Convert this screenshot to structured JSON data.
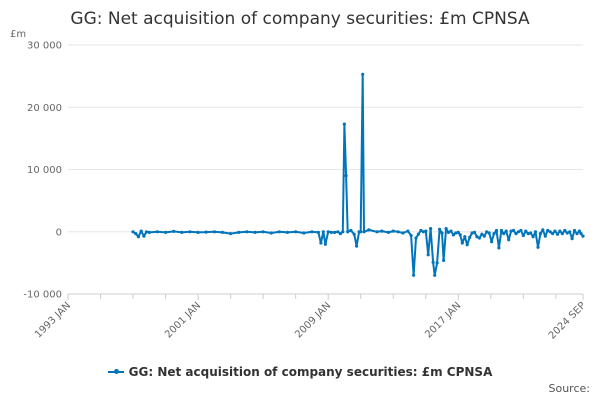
{
  "title": "GG: Net acquisition of company securities: £m CPNSA",
  "source_label": "Source:",
  "colors": {
    "series": "#0075bc",
    "grid": "#e6e6e6",
    "axis": "#cccccc",
    "text": "#666666"
  },
  "chart_data": {
    "type": "line",
    "title": "GG: Net acquisition of company securities: £m CPNSA",
    "ylabel": "£m",
    "ylim": [
      -10000,
      30000
    ],
    "yticks": [
      {
        "value": -10000,
        "label": "-10 000"
      },
      {
        "value": 0,
        "label": "0"
      },
      {
        "value": 10000,
        "label": "10 000"
      },
      {
        "value": 20000,
        "label": "20 000"
      },
      {
        "value": 30000,
        "label": "30 000"
      }
    ],
    "xlim": [
      1993.0,
      2024.67
    ],
    "xticks": [
      {
        "value": 1993.0,
        "label": "1993 JAN"
      },
      {
        "value": 2001.0,
        "label": "2001 JAN"
      },
      {
        "value": 2009.0,
        "label": "2009 JAN"
      },
      {
        "value": 2017.0,
        "label": "2017 JAN"
      },
      {
        "value": 2024.67,
        "label": "2024 SEP"
      }
    ],
    "minor_xticks": [
      1995,
      1997,
      1999,
      2003,
      2005,
      2007,
      2011,
      2013,
      2015,
      2019,
      2021,
      2023
    ],
    "grid": true,
    "legend_position": "bottom",
    "series": [
      {
        "name": "GG: Net acquisition of company securities: £m CPNSA",
        "points": [
          [
            1997.0,
            0
          ],
          [
            1997.17,
            -300
          ],
          [
            1997.33,
            -800
          ],
          [
            1997.5,
            100
          ],
          [
            1997.67,
            -700
          ],
          [
            1997.83,
            0
          ],
          [
            1998.0,
            -100
          ],
          [
            1998.5,
            0
          ],
          [
            1999.0,
            -100
          ],
          [
            1999.5,
            50
          ],
          [
            2000.0,
            -100
          ],
          [
            2000.5,
            0
          ],
          [
            2001.0,
            -100
          ],
          [
            2001.5,
            -50
          ],
          [
            2002.0,
            0
          ],
          [
            2002.5,
            -100
          ],
          [
            2003.0,
            -300
          ],
          [
            2003.5,
            -100
          ],
          [
            2004.0,
            0
          ],
          [
            2004.5,
            -100
          ],
          [
            2005.0,
            0
          ],
          [
            2005.5,
            -200
          ],
          [
            2006.0,
            0
          ],
          [
            2006.5,
            -100
          ],
          [
            2007.0,
            0
          ],
          [
            2007.5,
            -200
          ],
          [
            2008.0,
            0
          ],
          [
            2008.4,
            -100
          ],
          [
            2008.55,
            -1800
          ],
          [
            2008.7,
            0
          ],
          [
            2008.83,
            -2000
          ],
          [
            2009.0,
            0
          ],
          [
            2009.2,
            -100
          ],
          [
            2009.4,
            -100
          ],
          [
            2009.6,
            0
          ],
          [
            2009.75,
            -300
          ],
          [
            2009.9,
            0
          ],
          [
            2010.0,
            17300
          ],
          [
            2010.1,
            9000
          ],
          [
            2010.2,
            0
          ],
          [
            2010.4,
            200
          ],
          [
            2010.6,
            -400
          ],
          [
            2010.75,
            -2300
          ],
          [
            2010.9,
            0
          ],
          [
            2011.0,
            0
          ],
          [
            2011.12,
            25300
          ],
          [
            2011.2,
            0
          ],
          [
            2011.5,
            300
          ],
          [
            2012.0,
            0
          ],
          [
            2012.3,
            100
          ],
          [
            2012.7,
            -100
          ],
          [
            2013.0,
            100
          ],
          [
            2013.3,
            0
          ],
          [
            2013.6,
            -200
          ],
          [
            2013.9,
            100
          ],
          [
            2014.1,
            -600
          ],
          [
            2014.25,
            -7000
          ],
          [
            2014.4,
            -1000
          ],
          [
            2014.55,
            -400
          ],
          [
            2014.7,
            200
          ],
          [
            2014.85,
            0
          ],
          [
            2015.0,
            100
          ],
          [
            2015.15,
            -3700
          ],
          [
            2015.3,
            500
          ],
          [
            2015.45,
            -4900
          ],
          [
            2015.55,
            -7000
          ],
          [
            2015.7,
            -5000
          ],
          [
            2015.85,
            400
          ],
          [
            2016.0,
            -200
          ],
          [
            2016.1,
            -4600
          ],
          [
            2016.25,
            500
          ],
          [
            2016.4,
            -100
          ],
          [
            2016.55,
            100
          ],
          [
            2016.7,
            -500
          ],
          [
            2016.85,
            -200
          ],
          [
            2017.0,
            -100
          ],
          [
            2017.12,
            -500
          ],
          [
            2017.25,
            -1800
          ],
          [
            2017.4,
            -800
          ],
          [
            2017.55,
            -2100
          ],
          [
            2017.7,
            -900
          ],
          [
            2017.85,
            -200
          ],
          [
            2018.0,
            -100
          ],
          [
            2018.15,
            -800
          ],
          [
            2018.3,
            -1000
          ],
          [
            2018.45,
            -400
          ],
          [
            2018.6,
            -700
          ],
          [
            2018.75,
            0
          ],
          [
            2018.9,
            -200
          ],
          [
            2019.05,
            -1600
          ],
          [
            2019.2,
            -300
          ],
          [
            2019.35,
            200
          ],
          [
            2019.5,
            -2600
          ],
          [
            2019.65,
            200
          ],
          [
            2019.8,
            -300
          ],
          [
            2019.95,
            100
          ],
          [
            2020.1,
            -1300
          ],
          [
            2020.25,
            100
          ],
          [
            2020.4,
            200
          ],
          [
            2020.55,
            -300
          ],
          [
            2020.7,
            0
          ],
          [
            2020.85,
            200
          ],
          [
            2021.0,
            -600
          ],
          [
            2021.15,
            100
          ],
          [
            2021.3,
            -300
          ],
          [
            2021.45,
            -200
          ],
          [
            2021.6,
            -800
          ],
          [
            2021.75,
            0
          ],
          [
            2021.9,
            -2500
          ],
          [
            2022.05,
            -300
          ],
          [
            2022.2,
            300
          ],
          [
            2022.35,
            -700
          ],
          [
            2022.5,
            200
          ],
          [
            2022.65,
            0
          ],
          [
            2022.8,
            -300
          ],
          [
            2022.95,
            100
          ],
          [
            2023.1,
            -400
          ],
          [
            2023.25,
            100
          ],
          [
            2023.4,
            -300
          ],
          [
            2023.55,
            200
          ],
          [
            2023.7,
            -200
          ],
          [
            2023.85,
            0
          ],
          [
            2024.0,
            -1100
          ],
          [
            2024.15,
            200
          ],
          [
            2024.3,
            -300
          ],
          [
            2024.45,
            100
          ],
          [
            2024.55,
            -300
          ],
          [
            2024.67,
            -700
          ]
        ]
      }
    ]
  }
}
